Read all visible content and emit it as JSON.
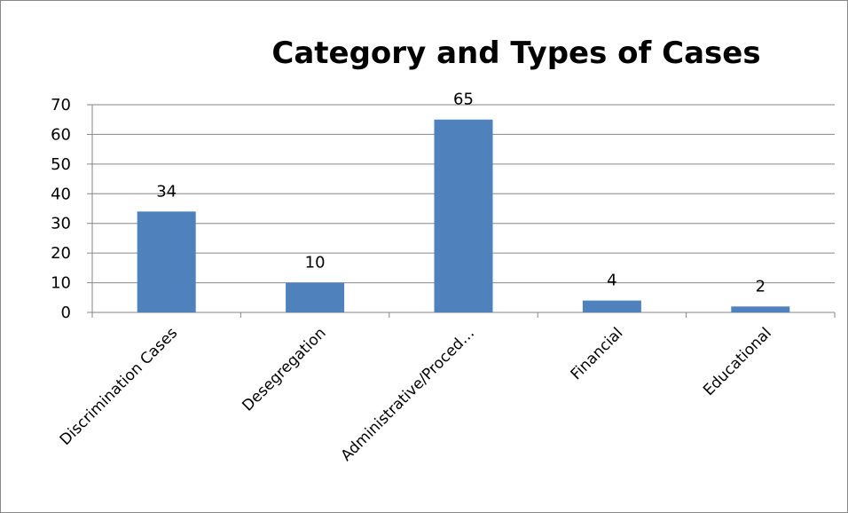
{
  "chart_data": {
    "type": "bar",
    "title": "Category and Types of Cases",
    "xlabel": "",
    "ylabel": "",
    "categories": [
      "Discrimination Cases",
      "Desegregation",
      "Administrative/Proced…",
      "Financial",
      "Educational"
    ],
    "values": [
      34,
      10,
      65,
      4,
      2
    ],
    "data_labels": [
      "34",
      "10",
      "65",
      "4",
      "2"
    ],
    "ylim": [
      0,
      70
    ],
    "yticks": [
      0,
      10,
      20,
      30,
      40,
      50,
      60,
      70
    ],
    "grid": true,
    "legend": "none",
    "bar_color": "#4f81bd"
  }
}
